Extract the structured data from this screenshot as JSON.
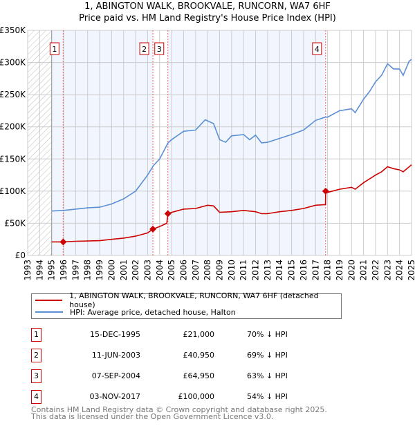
{
  "chart_data": {
    "type": "line",
    "title": "1, ABINGTON WALK, BROOKVALE, RUNCORN, WA7 6HF",
    "subtitle": "Price paid vs. HM Land Registry's House Price Index (HPI)",
    "xlim": [
      1993,
      2025
    ],
    "ylim": [
      0,
      350000
    ],
    "x_ticks": [
      "1993",
      "1994",
      "1995",
      "1996",
      "1997",
      "1998",
      "1999",
      "2000",
      "2001",
      "2002",
      "2003",
      "2004",
      "2005",
      "2006",
      "2007",
      "2008",
      "2009",
      "2010",
      "2011",
      "2012",
      "2013",
      "2014",
      "2015",
      "2016",
      "2017",
      "2018",
      "2019",
      "2020",
      "2021",
      "2022",
      "2023",
      "2024",
      "2025"
    ],
    "y_ticks": [
      {
        "v": 0,
        "label": "£0"
      },
      {
        "v": 50000,
        "label": "£50K"
      },
      {
        "v": 100000,
        "label": "£100K"
      },
      {
        "v": 150000,
        "label": "£150K"
      },
      {
        "v": 200000,
        "label": "£200K"
      },
      {
        "v": 250000,
        "label": "£250K"
      },
      {
        "v": 300000,
        "label": "£300K"
      },
      {
        "v": 350000,
        "label": "£350K"
      }
    ],
    "grid": true,
    "series": [
      {
        "name": "1, ABINGTON WALK, BROOKVALE, RUNCORN, WA7 6HF (detached house)",
        "color": "#cc0000",
        "x": [
          1995,
          1995.96,
          1997,
          1999,
          2000,
          2001,
          2002,
          2003,
          2003.44,
          2004,
          2004.6,
          2004.69,
          2005,
          2006,
          2007,
          2008,
          2008.5,
          2009,
          2010,
          2011,
          2012,
          2012.5,
          2013,
          2014,
          2015,
          2016,
          2017,
          2017.83,
          2017.84,
          2018,
          2019,
          2020,
          2020.3,
          2021,
          2022,
          2022.5,
          2023,
          2023.5,
          2024,
          2024.3,
          2025
        ],
        "y": [
          21000,
          21000,
          22000,
          23000,
          25000,
          27000,
          30000,
          35000,
          40950,
          45000,
          50000,
          64950,
          67000,
          72000,
          73000,
          78000,
          77000,
          67000,
          68000,
          70000,
          68000,
          65000,
          65000,
          68000,
          70000,
          73000,
          78000,
          79000,
          100000,
          98000,
          103000,
          106000,
          103000,
          113000,
          125000,
          130000,
          138000,
          135000,
          133000,
          130000,
          141000
        ]
      },
      {
        "name": "HPI: Average price, detached house, Halton",
        "color": "#5b8fd4",
        "x": [
          1995,
          1996,
          1997,
          1998,
          1999,
          2000,
          2001,
          2002,
          2003,
          2003.5,
          2004,
          2004.7,
          2005,
          2006,
          2007,
          2007.8,
          2008.5,
          2009,
          2009.5,
          2010,
          2011,
          2011.5,
          2012,
          2012.5,
          2013,
          2014,
          2015,
          2016,
          2017,
          2017.8,
          2018,
          2019,
          2020,
          2020.3,
          2021,
          2021.5,
          2022,
          2022.5,
          2023,
          2023.5,
          2024,
          2024.3,
          2024.8,
          2025
        ],
        "y": [
          69000,
          70000,
          72000,
          74000,
          75000,
          80000,
          88000,
          100000,
          125000,
          140000,
          150000,
          175000,
          180000,
          193000,
          195000,
          211000,
          205000,
          180000,
          176000,
          186000,
          188000,
          180000,
          187000,
          175000,
          176000,
          182000,
          188000,
          195000,
          210000,
          215000,
          215000,
          225000,
          228000,
          222000,
          243000,
          255000,
          270000,
          280000,
          298000,
          290000,
          290000,
          280000,
          302000,
          305000
        ]
      }
    ],
    "sales": [
      {
        "id": "1",
        "x": 1995.96,
        "y": 21000
      },
      {
        "id": "2",
        "x": 2003.44,
        "y": 40950
      },
      {
        "id": "3",
        "x": 2004.69,
        "y": 64950
      },
      {
        "id": "4",
        "x": 2017.84,
        "y": 100000
      }
    ]
  },
  "legend": {
    "property": "1, ABINGTON WALK, BROOKVALE, RUNCORN, WA7 6HF (detached house)",
    "hpi": "HPI: Average price, detached house, Halton"
  },
  "transactions": [
    {
      "num": "1",
      "date": "15-DEC-1995",
      "price": "£21,000",
      "hpi": "70% ↓ HPI"
    },
    {
      "num": "2",
      "date": "11-JUN-2003",
      "price": "£40,950",
      "hpi": "69% ↓ HPI"
    },
    {
      "num": "3",
      "date": "07-SEP-2004",
      "price": "£64,950",
      "hpi": "63% ↓ HPI"
    },
    {
      "num": "4",
      "date": "03-NOV-2017",
      "price": "£100,000",
      "hpi": "54% ↓ HPI"
    }
  ],
  "footer": {
    "line1": "Contains HM Land Registry data © Crown copyright and database right 2025.",
    "line2": "This data is licensed under the Open Government Licence v3.0."
  }
}
